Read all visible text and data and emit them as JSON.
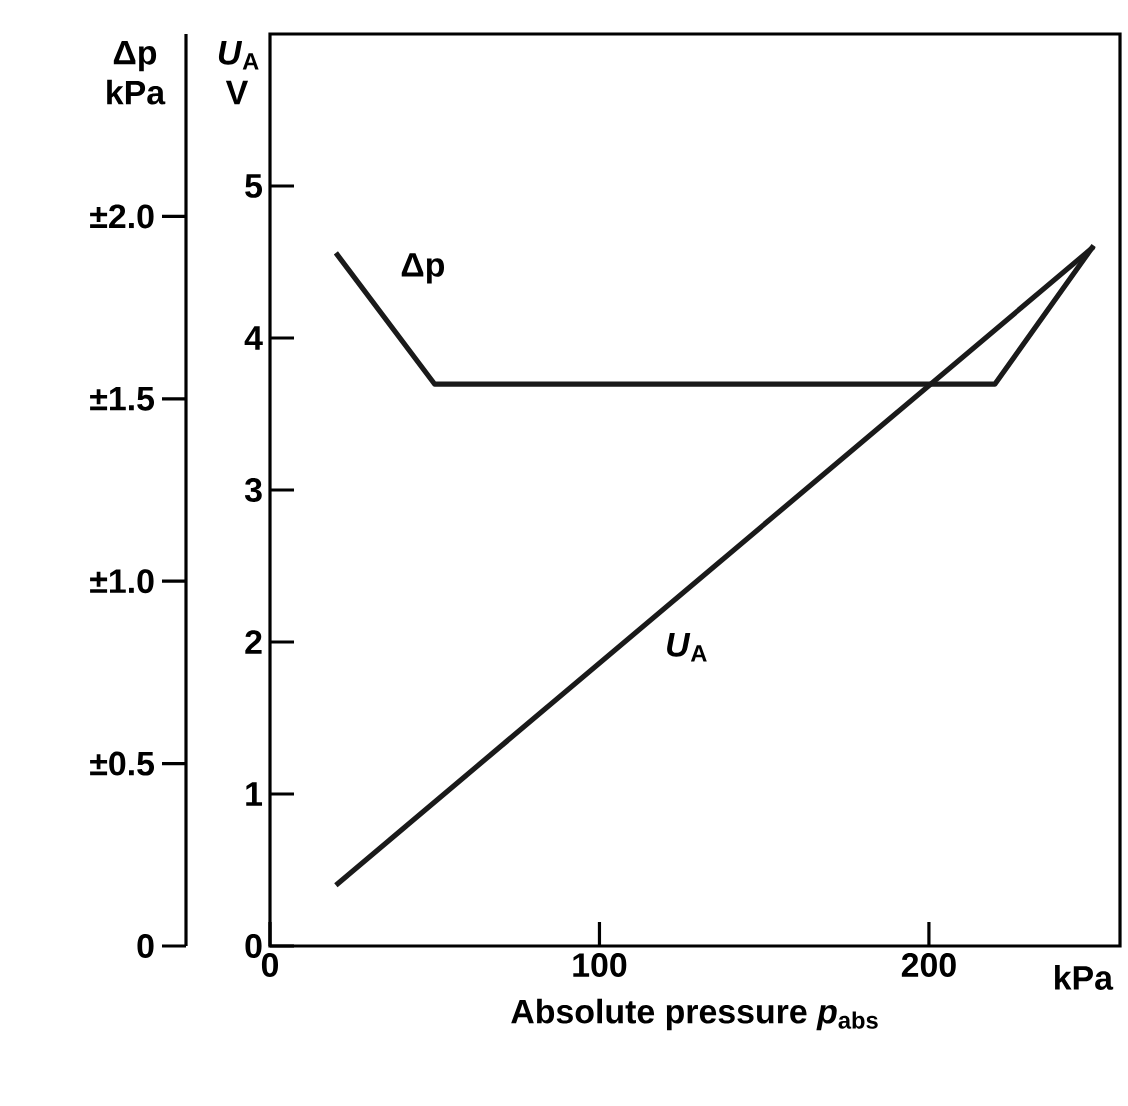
{
  "chart_data": {
    "type": "line",
    "xlabel": "Absolute pressure *p*$_{abs}$",
    "ylabel": "*U*$_{A}$ V",
    "y2label": "Δp kPa",
    "annotations": [
      "kPa"
    ],
    "xlim": [
      0,
      258
    ],
    "xticks": [
      0,
      100,
      200
    ],
    "ylim": [
      0,
      6
    ],
    "yticks": [
      0,
      1,
      2,
      3,
      4,
      5
    ],
    "y2lim": [
      0,
      2.5
    ],
    "y2ticks": [
      0,
      {
        "value": 0.5,
        "label": "±0.5"
      },
      {
        "value": 1.0,
        "label": "±1.0"
      },
      {
        "value": 1.5,
        "label": "±1.5"
      },
      {
        "value": 2.0,
        "label": "±2.0"
      }
    ],
    "series": [
      {
        "name": "Δp",
        "color": "#1a1a1a",
        "axis": "y2",
        "x": [
          20,
          50,
          220,
          250
        ],
        "values": [
          1.9,
          1.54,
          1.54,
          1.92
        ]
      },
      {
        "name": "*U*$_{A}$",
        "color": "#1a1a1a",
        "x": [
          20,
          250
        ],
        "values": [
          0.4,
          4.6
        ]
      }
    ]
  }
}
